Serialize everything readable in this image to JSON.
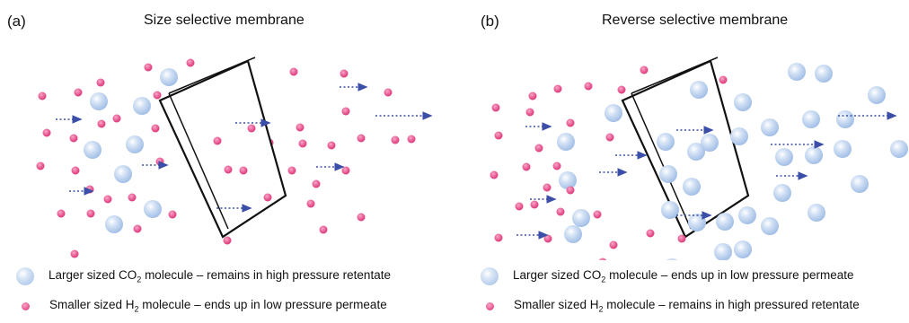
{
  "panels": [
    {
      "label": "(a)",
      "title": "Size selective membrane",
      "legend": {
        "large": {
          "pre": "Larger sized CO",
          "sub": "2",
          "post": " molecule – remains in high pressure retentate"
        },
        "small": {
          "pre": "Smaller sized H",
          "sub": "2",
          "post": " molecule – ends up in low pressure permeate"
        }
      }
    },
    {
      "label": "(b)",
      "title": "Reverse selective membrane",
      "legend": {
        "large": {
          "pre": "Larger sized CO",
          "sub": "2",
          "post": " molecule – ends up in low pressure permeate"
        },
        "small": {
          "pre": "Smaller sized H",
          "sub": "2",
          "post": " molecule – remains in high pressured retentate"
        }
      }
    }
  ],
  "colors": {
    "small_molecule": "#e54d8a",
    "large_molecule": "#a9c4ea",
    "arrow": "#3b4ea8"
  }
}
